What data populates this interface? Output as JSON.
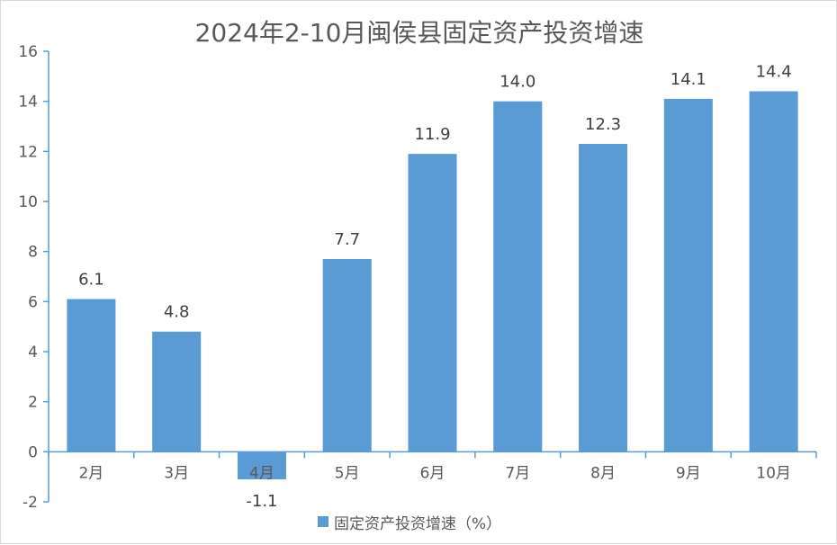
{
  "chart_data": {
    "type": "bar",
    "title": "2024年2-10月闽侯县固定资产投资增速",
    "categories": [
      "2月",
      "3月",
      "4月",
      "5月",
      "6月",
      "7月",
      "8月",
      "9月",
      "10月"
    ],
    "series": [
      {
        "name": "固定资产投资增速（%）",
        "values": [
          6.1,
          4.8,
          -1.1,
          7.7,
          11.9,
          14.0,
          12.3,
          14.1,
          14.4
        ],
        "labels": [
          "6.1",
          "4.8",
          "-1.1",
          "7.7",
          "11.9",
          "14.0",
          "12.3",
          "14.1",
          "14.4"
        ]
      }
    ],
    "ylim": [
      -2,
      16
    ],
    "yticks": [
      -2,
      0,
      2,
      4,
      6,
      8,
      10,
      12,
      14,
      16
    ],
    "bar_color": "#5b9bd5",
    "axis_color": "#5b9bd5",
    "grid": false,
    "legend_position": "bottom"
  }
}
